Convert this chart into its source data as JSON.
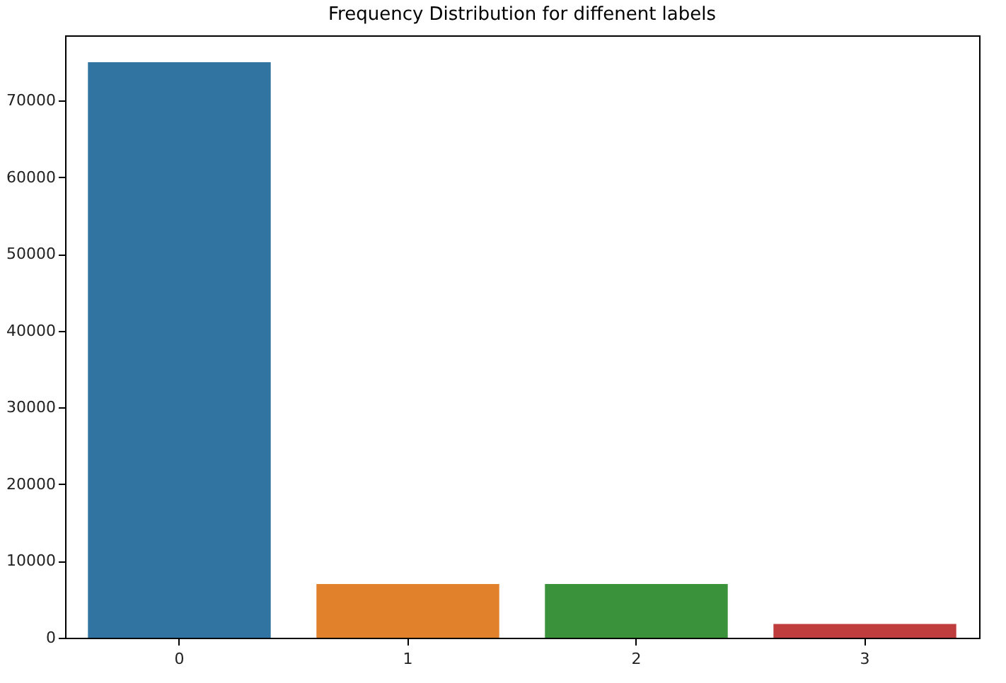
{
  "chart_data": {
    "type": "bar",
    "title": "Frequency Distribution for diffenent labels",
    "categories": [
      "0",
      "1",
      "2",
      "3"
    ],
    "values": [
      75000,
      7000,
      7000,
      1800
    ],
    "colors": [
      "#3274a1",
      "#e1812c",
      "#3a923a",
      "#c03d3e"
    ],
    "ylim": [
      0,
      78500
    ],
    "yticks": [
      0,
      10000,
      20000,
      30000,
      40000,
      50000,
      60000,
      70000
    ],
    "grid": false
  }
}
